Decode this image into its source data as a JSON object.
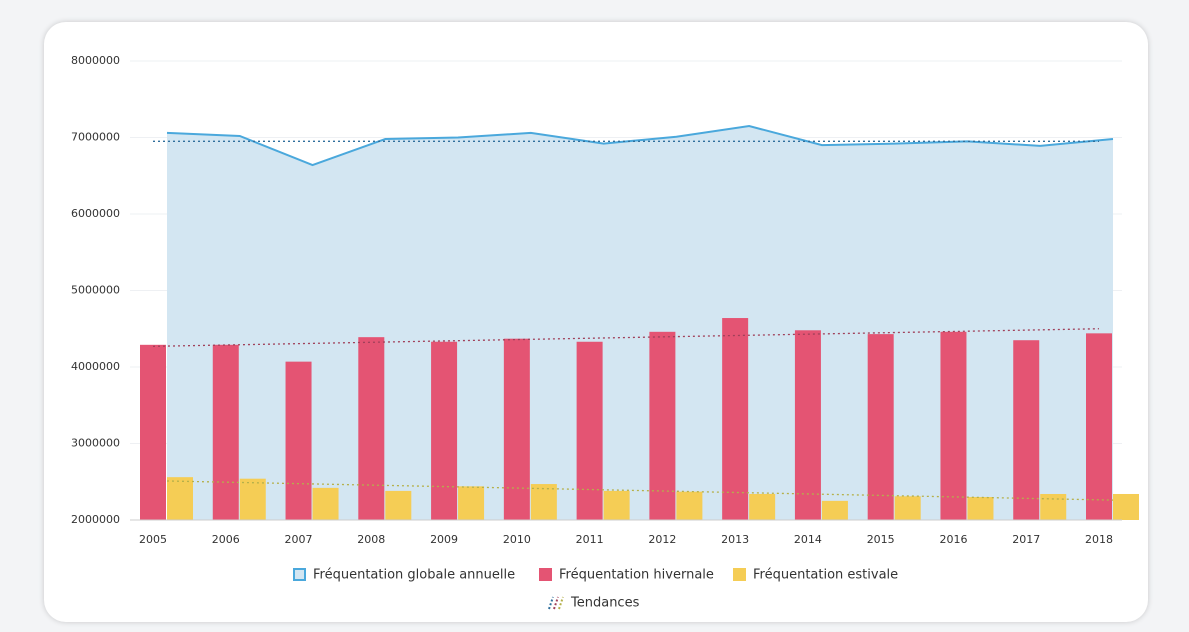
{
  "chart_data": {
    "type": "bar",
    "categories": [
      "2005",
      "2006",
      "2007",
      "2008",
      "2009",
      "2010",
      "2011",
      "2012",
      "2013",
      "2014",
      "2015",
      "2016",
      "2017",
      "2018"
    ],
    "series": [
      {
        "name": "Fréquentation globale annuelle",
        "kind": "area",
        "color": "#4aa8dc",
        "fill": "#d3e6f2",
        "values": [
          7060000,
          7020000,
          6640000,
          6980000,
          7000000,
          7060000,
          6920000,
          7010000,
          7150000,
          6900000,
          6920000,
          6950000,
          6890000,
          6980000
        ]
      },
      {
        "name": "Fréquentation hivernale",
        "kind": "bar",
        "color": "#e45473",
        "values": [
          4290000,
          4290000,
          4070000,
          4390000,
          4330000,
          4370000,
          4330000,
          4460000,
          4640000,
          4480000,
          4430000,
          4460000,
          4350000,
          4440000
        ]
      },
      {
        "name": "Fréquentation estivale",
        "kind": "bar",
        "color": "#f5cd55",
        "values": [
          2560000,
          2540000,
          2420000,
          2380000,
          2440000,
          2470000,
          2380000,
          2370000,
          2340000,
          2250000,
          2310000,
          2300000,
          2340000,
          2340000
        ]
      }
    ],
    "trend_legend": "Tendances",
    "trends": [
      {
        "color": "#2f6f9c",
        "values": [
          6950000,
          6950000
        ]
      },
      {
        "color": "#a0405a",
        "values": [
          4270000,
          4500000
        ]
      },
      {
        "color": "#b5b04a",
        "values": [
          2510000,
          2260000
        ]
      }
    ],
    "ylim": [
      2000000,
      8000000
    ],
    "yticks": [
      2000000,
      3000000,
      4000000,
      5000000,
      6000000,
      7000000,
      8000000
    ],
    "grid": true
  }
}
